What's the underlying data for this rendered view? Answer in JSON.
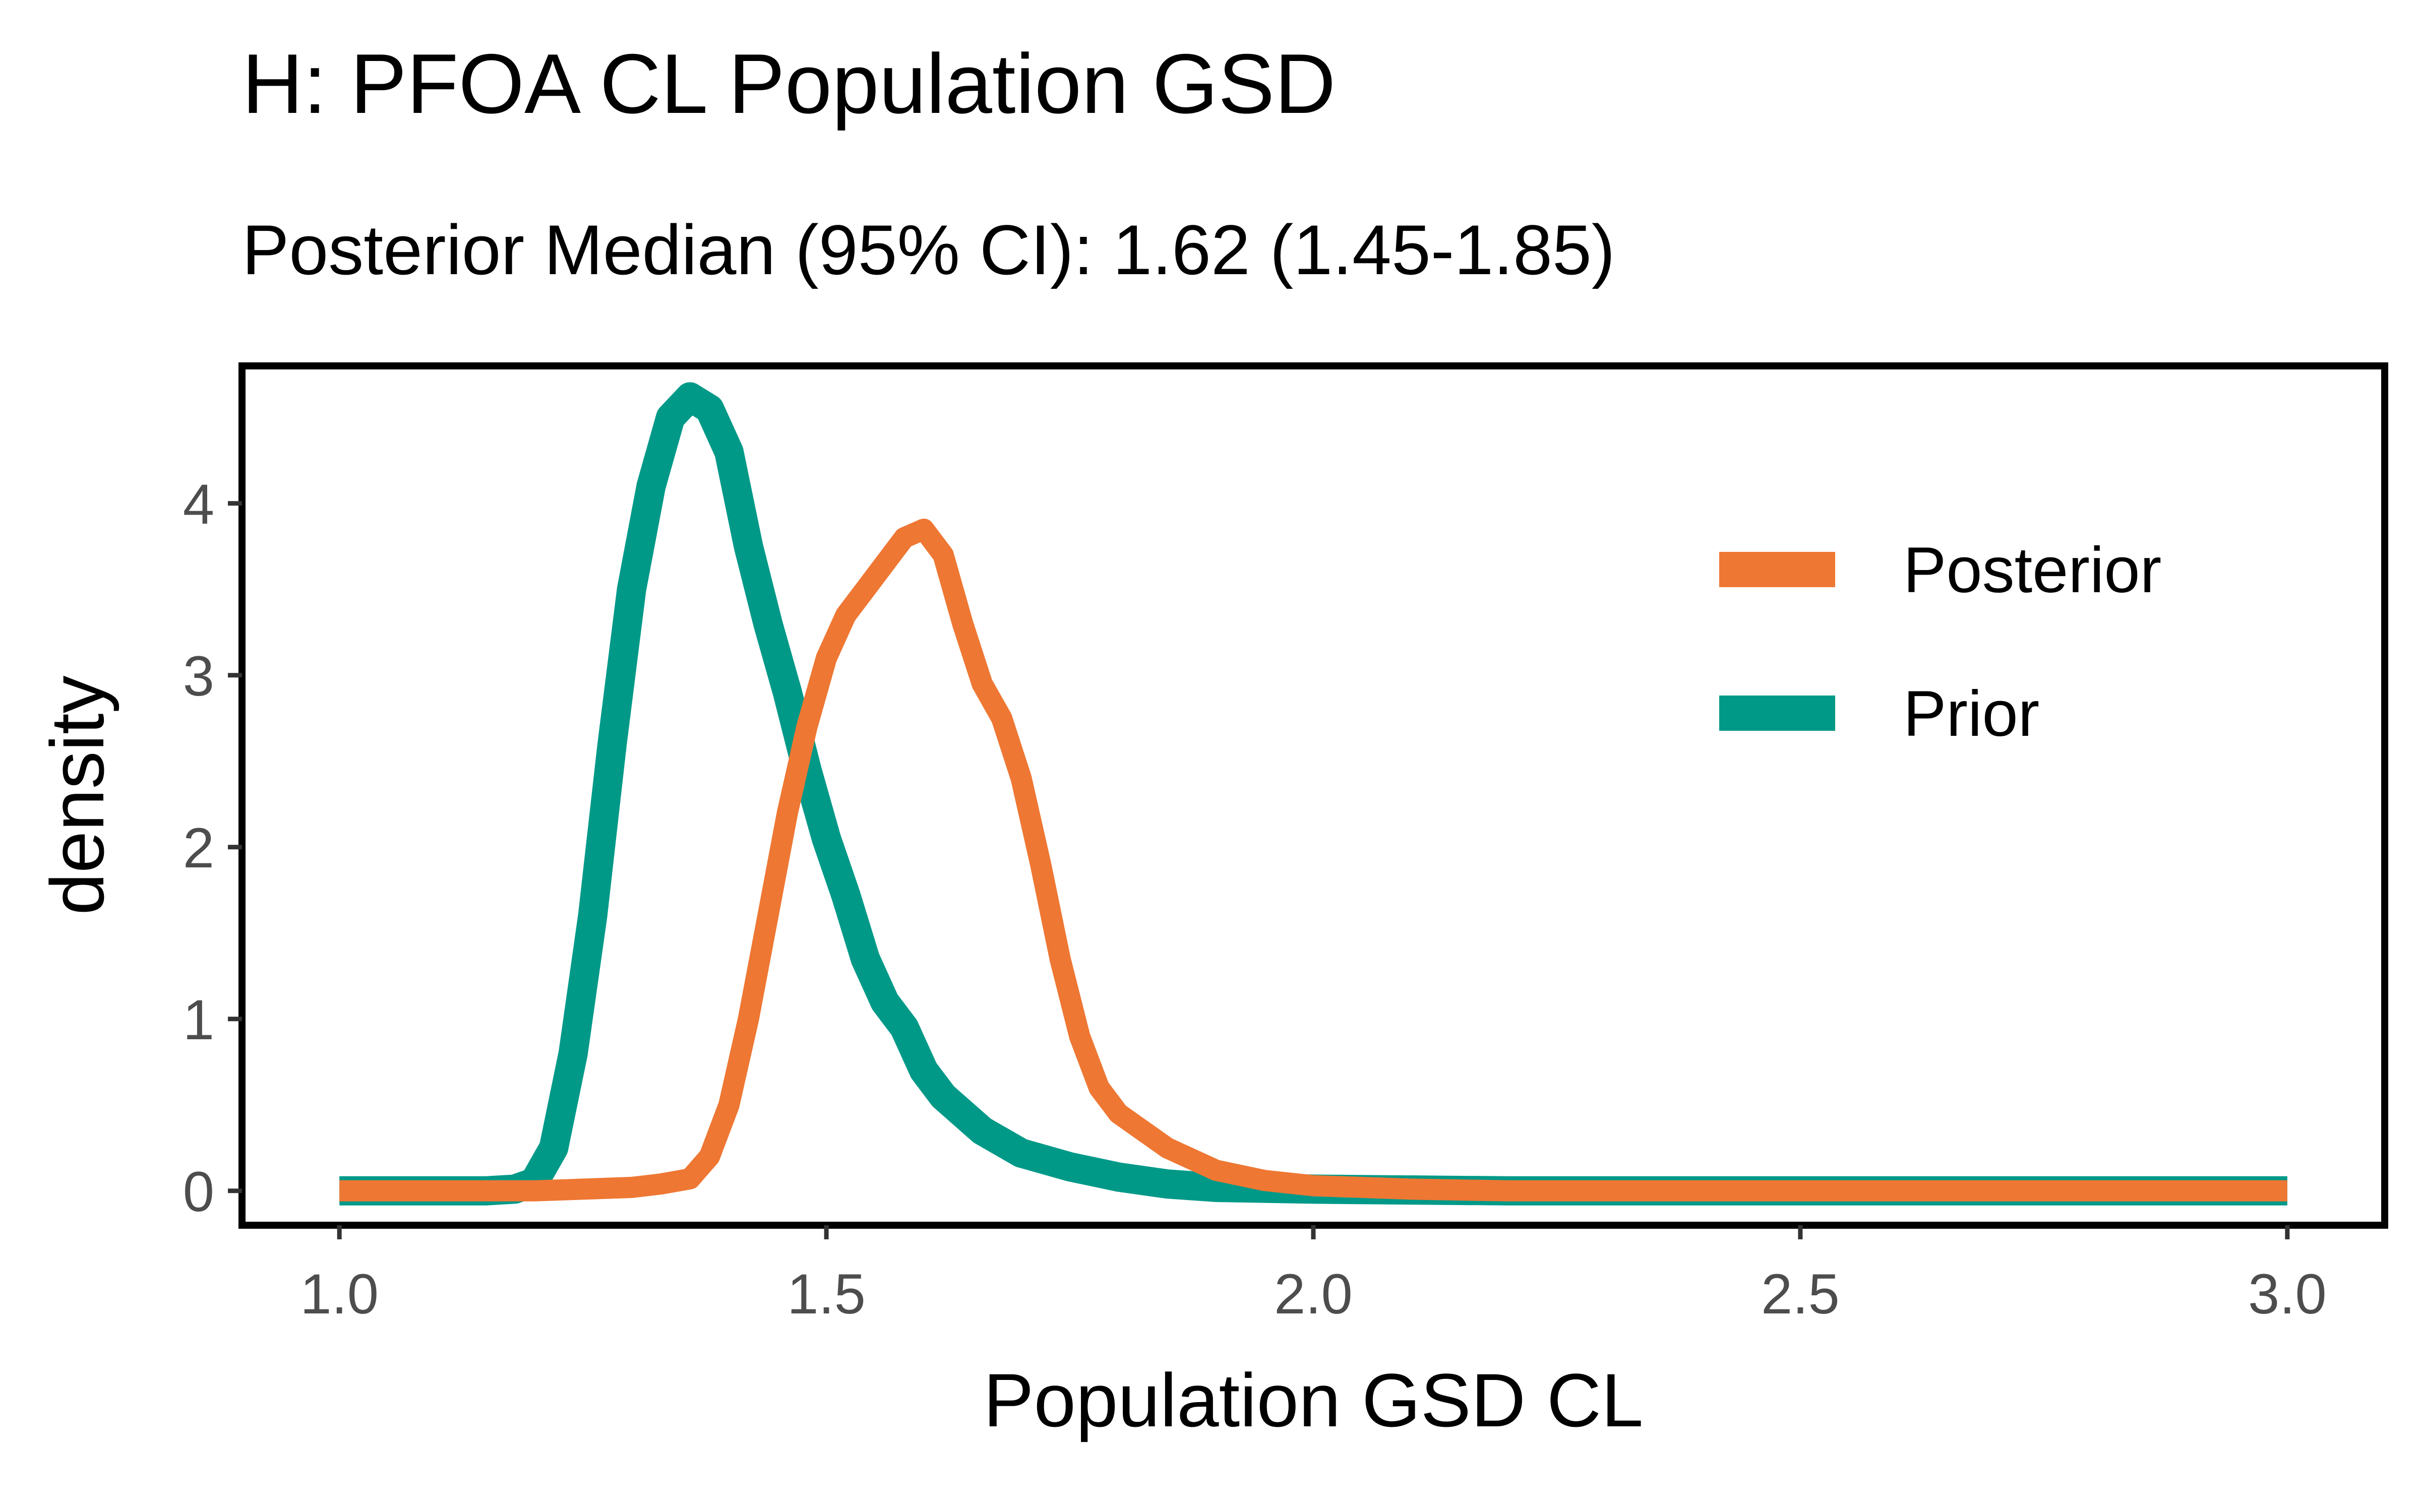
{
  "chart_data": {
    "type": "line",
    "title": "H: PFOA CL Population GSD",
    "subtitle": "Posterior Median (95% CI): 1.62 (1.45-1.85)",
    "xlabel": "Population GSD CL",
    "ylabel": "density",
    "xlim": [
      0.9,
      3.1
    ],
    "ylim": [
      -0.2,
      4.8
    ],
    "x_ticks": [
      1.0,
      1.5,
      2.0,
      2.5,
      3.0
    ],
    "x_tick_labels": [
      "1.0",
      "1.5",
      "2.0",
      "2.5",
      "3.0"
    ],
    "y_ticks": [
      0,
      1,
      2,
      3,
      4
    ],
    "y_tick_labels": [
      "0",
      "1",
      "2",
      "3",
      "4"
    ],
    "grid": false,
    "legend_position": "top-right",
    "series": [
      {
        "name": "Posterior",
        "color": "#EE7733",
        "x": [
          1.0,
          1.2,
          1.3,
          1.33,
          1.36,
          1.38,
          1.4,
          1.42,
          1.44,
          1.46,
          1.48,
          1.5,
          1.52,
          1.54,
          1.56,
          1.58,
          1.6,
          1.62,
          1.64,
          1.66,
          1.68,
          1.7,
          1.72,
          1.74,
          1.76,
          1.78,
          1.8,
          1.85,
          1.9,
          1.95,
          2.0,
          2.1,
          2.2,
          2.5,
          3.0
        ],
        "y": [
          0.0,
          0.0,
          0.02,
          0.04,
          0.07,
          0.2,
          0.5,
          1.0,
          1.6,
          2.2,
          2.7,
          3.1,
          3.35,
          3.5,
          3.65,
          3.8,
          3.85,
          3.7,
          3.3,
          2.95,
          2.75,
          2.4,
          1.9,
          1.35,
          0.9,
          0.6,
          0.45,
          0.25,
          0.12,
          0.06,
          0.03,
          0.01,
          0.0,
          0.0,
          0.0
        ]
      },
      {
        "name": "Prior",
        "color": "#009988",
        "x": [
          1.0,
          1.15,
          1.18,
          1.2,
          1.22,
          1.24,
          1.26,
          1.28,
          1.3,
          1.32,
          1.34,
          1.36,
          1.38,
          1.4,
          1.42,
          1.44,
          1.46,
          1.48,
          1.5,
          1.52,
          1.54,
          1.56,
          1.58,
          1.6,
          1.62,
          1.64,
          1.66,
          1.7,
          1.75,
          1.8,
          1.85,
          1.9,
          2.0,
          2.2,
          2.5,
          3.0
        ],
        "y": [
          0.0,
          0.0,
          0.01,
          0.05,
          0.25,
          0.8,
          1.6,
          2.6,
          3.5,
          4.1,
          4.5,
          4.62,
          4.55,
          4.3,
          3.75,
          3.3,
          2.9,
          2.45,
          2.05,
          1.72,
          1.35,
          1.1,
          0.95,
          0.7,
          0.55,
          0.45,
          0.35,
          0.22,
          0.14,
          0.08,
          0.04,
          0.02,
          0.01,
          0.0,
          0.0,
          0.0
        ]
      }
    ]
  }
}
